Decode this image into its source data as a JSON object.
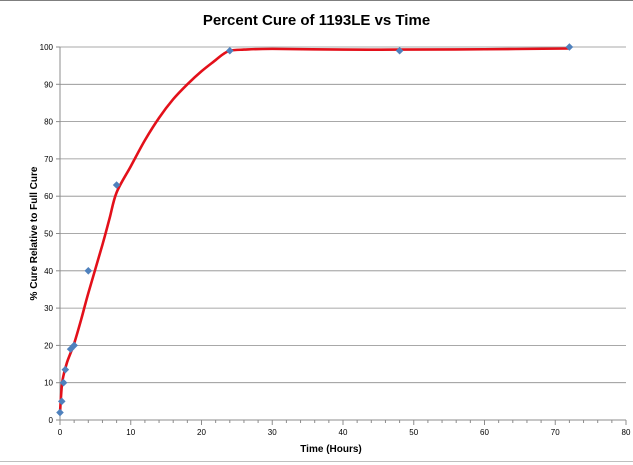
{
  "chart_data": {
    "type": "scatter",
    "title": "Percent Cure of 1193LE vs Time",
    "xlabel": "Time (Hours)",
    "ylabel": "% Cure Relative to Full Cure",
    "xlim": [
      0,
      80
    ],
    "ylim": [
      0,
      100
    ],
    "x_ticks": [
      "0",
      "10",
      "20",
      "30",
      "40",
      "50",
      "60",
      "70",
      "80"
    ],
    "y_ticks": [
      "0",
      "10",
      "20",
      "30",
      "40",
      "50",
      "60",
      "70",
      "80",
      "90",
      "100"
    ],
    "grid": "horizontal",
    "legend": "none",
    "series": [
      {
        "kind": "markers",
        "marker": "diamond",
        "color": "#4f81bd",
        "x": [
          0,
          0.25,
          0.5,
          0.75,
          1.5,
          2,
          4,
          8,
          24,
          48,
          72
        ],
        "y": [
          2,
          5,
          10,
          13.5,
          19,
          20,
          40,
          63,
          99,
          99,
          100
        ]
      },
      {
        "kind": "trendline",
        "color": "#e3101a",
        "x": [
          0,
          0.25,
          0.5,
          1,
          1.5,
          2,
          3,
          4,
          6,
          7,
          8,
          10,
          12,
          14,
          16,
          18,
          20,
          22,
          23,
          24,
          26,
          30,
          40,
          48,
          60,
          72
        ],
        "y": [
          2,
          9,
          12,
          15.5,
          18,
          20.5,
          27,
          34,
          47,
          54,
          61,
          68,
          75,
          81,
          86,
          90,
          93.5,
          96.5,
          98,
          99,
          99.3,
          99.5,
          99.3,
          99.3,
          99.4,
          99.6
        ]
      }
    ]
  }
}
